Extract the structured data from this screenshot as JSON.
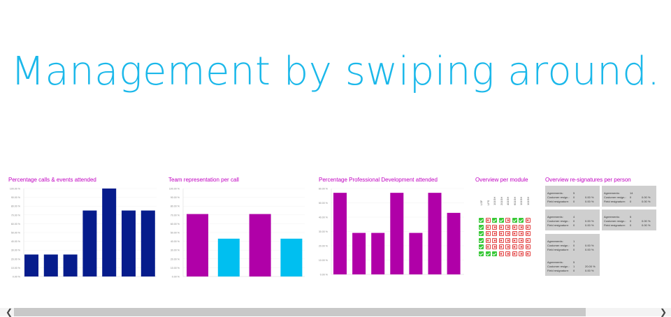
{
  "headline": "Management by swiping around.",
  "colors": {
    "headline": "#1bb8ea",
    "title": "#c000c0",
    "navy": "#061c8c",
    "magenta": "#b000a8",
    "cyan": "#00bff0"
  },
  "chart_data": [
    {
      "type": "bar",
      "title": "Percentage calls & events attended",
      "color": "#061c8c",
      "yticks": [
        "100.00 %",
        "90.00 %",
        "80.00 %",
        "70.00 %",
        "60.00 %",
        "50.00 %",
        "40.00 %",
        "30.00 %",
        "20.00 %",
        "10.00 %",
        "0.00 %"
      ],
      "ylim": [
        0,
        100
      ],
      "values": [
        25,
        25,
        25,
        75,
        100,
        75,
        75
      ]
    },
    {
      "type": "bar",
      "title": "Team representation per call",
      "colors": [
        "#b000a8",
        "#00bff0",
        "#b000a8",
        "#00bff0"
      ],
      "yticks": [
        "100.00 %",
        "90.00 %",
        "80.00 %",
        "70.00 %",
        "60.00 %",
        "50.00 %",
        "40.00 %",
        "30.00 %",
        "20.00 %",
        "10.00 %",
        "0.00 %"
      ],
      "ylim": [
        0,
        100
      ],
      "values": [
        71,
        43,
        71,
        43
      ]
    },
    {
      "type": "bar",
      "title": "Percentage Professional Development attended",
      "color": "#b000a8",
      "yticks": [
        "60.00 %",
        "50.00 %",
        "40.00 %",
        "30.00 %",
        "20.00 %",
        "10.00 %",
        "0.00 %"
      ],
      "ylim": [
        0,
        60
      ],
      "values": [
        57,
        29,
        29,
        57,
        29,
        57,
        43
      ]
    }
  ],
  "module_overview": {
    "title": "Overview per module",
    "labels": [
      "LSF",
      "LFS",
      "101SH",
      "201SH",
      "401SH",
      "601SH",
      "101SH",
      "101SH"
    ],
    "rows": [
      [
        "ok",
        "bad",
        "ok",
        "ok",
        "bad",
        "ok",
        "ok",
        "bad"
      ],
      [
        "ok",
        "bad",
        "bad",
        "bad",
        "bad",
        "bad",
        "bad",
        "bad"
      ],
      [
        "ok",
        "bad",
        "bad",
        "bad",
        "bad",
        "bad",
        "bad",
        "bad"
      ],
      [
        "ok",
        "bad",
        "bad",
        "bad",
        "bad",
        "bad",
        "bad",
        "bad"
      ],
      [
        "ok",
        "bad",
        "bad",
        "bad",
        "bad",
        "bad",
        "bad",
        "bad"
      ],
      [
        "ok",
        "ok",
        "ok",
        "bad",
        "bad",
        "bad",
        "bad",
        "bad"
      ]
    ]
  },
  "resignatures": {
    "title": "Overview re-signatures per person",
    "row_labels": [
      "Agreements:",
      "Customer resign.:",
      "Field resignature:"
    ],
    "cards": [
      {
        "rows": [
          [
            "5",
            ""
          ],
          [
            "0",
            "0.00 %"
          ],
          [
            "0",
            "0.00 %"
          ]
        ]
      },
      {
        "rows": [
          [
            "14",
            ""
          ],
          [
            "0",
            "0.00 %"
          ],
          [
            "0",
            "0.00 %"
          ]
        ]
      },
      {
        "rows": [
          [
            "4",
            ""
          ],
          [
            "0",
            "0.00 %"
          ],
          [
            "0",
            "0.00 %"
          ]
        ]
      },
      {
        "rows": [
          [
            "5",
            ""
          ],
          [
            "0",
            "0.00 %"
          ],
          [
            "0",
            "0.00 %"
          ]
        ]
      },
      {
        "rows": [
          [
            "1",
            ""
          ],
          [
            "0",
            "0.00 %"
          ],
          [
            "0",
            "0.00 %"
          ]
        ]
      },
      {
        "rows": [
          [
            "5",
            ""
          ],
          [
            "1",
            "20.00 %"
          ],
          [
            "0",
            "0.00 %"
          ]
        ]
      }
    ]
  },
  "scrollbar": {
    "left_arrow": "❮",
    "right_arrow": "❯"
  }
}
